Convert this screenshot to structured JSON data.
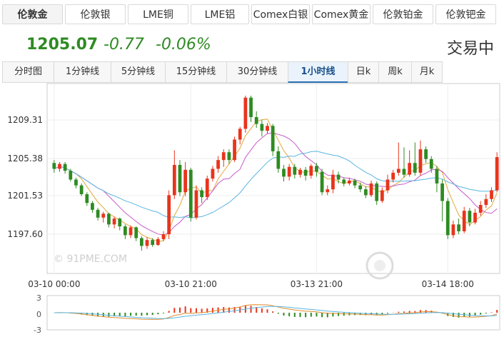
{
  "top_tabs": [
    {
      "label": "伦敦金",
      "active": true
    },
    {
      "label": "伦敦银",
      "active": false
    },
    {
      "label": "LME铜",
      "active": false
    },
    {
      "label": "LME铝",
      "active": false
    },
    {
      "label": "Comex白银",
      "active": false
    },
    {
      "label": "Comex黄金",
      "active": false
    },
    {
      "label": "伦敦铂金",
      "active": false
    },
    {
      "label": "伦敦钯金",
      "active": false
    }
  ],
  "quote": {
    "price": "1205.07",
    "change": "-0.77",
    "change_pct": "-0.06%",
    "status": "交易中",
    "color": "#2e8b22"
  },
  "range_tabs": [
    {
      "label": "分时图",
      "active": false
    },
    {
      "label": "1分钟线",
      "active": false
    },
    {
      "label": "5分钟线",
      "active": false
    },
    {
      "label": "15分钟线",
      "active": false
    },
    {
      "label": "30分钟线",
      "active": false
    },
    {
      "label": "1小时线",
      "active": true
    },
    {
      "label": "日k",
      "active": false
    },
    {
      "label": "周k",
      "active": false
    },
    {
      "label": "月k",
      "active": false
    }
  ],
  "watermark_text": "© 91PME.COM",
  "chart_data": {
    "type": "candlestick",
    "y_ticks": [
      "1209.31",
      "1205.38",
      "1201.53",
      "1197.60"
    ],
    "y_tick_values": [
      1209.31,
      1205.38,
      1201.53,
      1197.6
    ],
    "x_ticks": [
      "03-10 00:00",
      "03-10 21:00",
      "03-13 21:00",
      "03-14 18:00"
    ],
    "x_tick_index": [
      0,
      25,
      48,
      72
    ],
    "up_color": "#e8341c",
    "down_color": "#2e8b22",
    "ma_colors": [
      "#e3a83c",
      "#c85ac8",
      "#5ab5e0"
    ],
    "candles": [
      [
        1204.9,
        1204.3,
        1205.2,
        1203.9
      ],
      [
        1204.3,
        1204.8,
        1205.0,
        1204.0
      ],
      [
        1204.8,
        1204.1,
        1205.0,
        1203.8
      ],
      [
        1204.1,
        1203.2,
        1204.3,
        1203.0
      ],
      [
        1203.2,
        1202.6,
        1203.4,
        1202.3
      ],
      [
        1202.6,
        1201.7,
        1202.8,
        1201.5
      ],
      [
        1201.7,
        1200.8,
        1201.9,
        1200.5
      ],
      [
        1200.8,
        1200.1,
        1201.0,
        1199.8
      ],
      [
        1200.1,
        1199.3,
        1200.3,
        1199.0
      ],
      [
        1199.3,
        1199.7,
        1199.9,
        1198.8
      ],
      [
        1199.7,
        1198.6,
        1199.8,
        1198.3
      ],
      [
        1198.6,
        1199.2,
        1199.4,
        1198.2
      ],
      [
        1199.2,
        1198.4,
        1199.3,
        1198.0
      ],
      [
        1198.4,
        1197.5,
        1198.6,
        1197.1
      ],
      [
        1197.5,
        1198.3,
        1198.5,
        1197.2
      ],
      [
        1198.3,
        1197.2,
        1198.4,
        1196.9
      ],
      [
        1197.2,
        1196.4,
        1197.4,
        1195.9
      ],
      [
        1196.4,
        1197.0,
        1197.3,
        1196.1
      ],
      [
        1197.0,
        1196.5,
        1197.2,
        1196.3
      ],
      [
        1196.5,
        1197.1,
        1197.3,
        1196.4
      ],
      [
        1197.1,
        1197.6,
        1197.9,
        1196.9
      ],
      [
        1197.6,
        1201.6,
        1202.1,
        1197.1
      ],
      [
        1201.6,
        1204.7,
        1206.2,
        1201.2
      ],
      [
        1204.7,
        1201.9,
        1205.2,
        1201.5
      ],
      [
        1201.9,
        1204.2,
        1205.0,
        1201.5
      ],
      [
        1204.2,
        1199.3,
        1204.4,
        1198.9
      ],
      [
        1199.3,
        1202.1,
        1202.6,
        1199.1
      ],
      [
        1202.1,
        1201.4,
        1202.4,
        1200.8
      ],
      [
        1201.4,
        1203.3,
        1203.6,
        1201.1
      ],
      [
        1203.3,
        1204.3,
        1204.6,
        1203.0
      ],
      [
        1204.3,
        1205.2,
        1205.6,
        1203.9
      ],
      [
        1205.2,
        1206.0,
        1206.3,
        1204.5
      ],
      [
        1206.0,
        1205.2,
        1206.3,
        1204.8
      ],
      [
        1205.2,
        1207.3,
        1207.6,
        1205.0
      ],
      [
        1207.3,
        1208.4,
        1208.6,
        1206.8
      ],
      [
        1208.4,
        1211.6,
        1211.8,
        1208.0
      ],
      [
        1211.6,
        1209.6,
        1211.8,
        1209.1
      ],
      [
        1209.6,
        1208.9,
        1210.2,
        1208.5
      ],
      [
        1208.9,
        1208.2,
        1209.3,
        1207.6
      ],
      [
        1208.2,
        1208.7,
        1209.0,
        1207.9
      ],
      [
        1208.7,
        1206.1,
        1208.9,
        1205.6
      ],
      [
        1206.1,
        1204.3,
        1206.6,
        1203.9
      ],
      [
        1204.3,
        1203.5,
        1204.7,
        1203.0
      ],
      [
        1203.5,
        1204.5,
        1204.8,
        1203.1
      ],
      [
        1204.5,
        1203.7,
        1204.8,
        1203.3
      ],
      [
        1203.7,
        1204.2,
        1204.4,
        1203.4
      ],
      [
        1204.2,
        1203.6,
        1204.5,
        1203.1
      ],
      [
        1203.6,
        1204.6,
        1204.8,
        1203.3
      ],
      [
        1204.6,
        1204.0,
        1204.9,
        1203.5
      ],
      [
        1204.0,
        1201.9,
        1204.3,
        1201.6
      ],
      [
        1201.9,
        1202.2,
        1202.6,
        1201.6
      ],
      [
        1202.2,
        1203.7,
        1204.2,
        1201.8
      ],
      [
        1203.7,
        1203.2,
        1204.0,
        1202.8
      ],
      [
        1203.2,
        1202.8,
        1203.4,
        1202.5
      ],
      [
        1202.8,
        1203.1,
        1203.4,
        1202.6
      ],
      [
        1203.1,
        1202.6,
        1203.3,
        1202.3
      ],
      [
        1202.6,
        1202.2,
        1202.9,
        1201.9
      ],
      [
        1202.2,
        1201.6,
        1202.5,
        1201.3
      ],
      [
        1201.6,
        1202.8,
        1203.1,
        1201.4
      ],
      [
        1202.8,
        1201.0,
        1203.0,
        1200.6
      ],
      [
        1201.0,
        1202.1,
        1202.4,
        1200.8
      ],
      [
        1202.1,
        1203.2,
        1203.7,
        1201.8
      ],
      [
        1203.2,
        1203.9,
        1204.2,
        1202.9
      ],
      [
        1203.9,
        1204.3,
        1207.0,
        1203.6
      ],
      [
        1204.3,
        1203.7,
        1206.5,
        1203.4
      ],
      [
        1203.7,
        1204.9,
        1206.2,
        1203.5
      ],
      [
        1204.9,
        1203.9,
        1207.0,
        1203.6
      ],
      [
        1203.9,
        1206.3,
        1207.2,
        1203.6
      ],
      [
        1206.3,
        1205.3,
        1206.6,
        1204.9
      ],
      [
        1205.3,
        1204.3,
        1205.6,
        1203.9
      ],
      [
        1204.3,
        1202.8,
        1204.6,
        1201.9
      ],
      [
        1202.8,
        1201.0,
        1203.2,
        1198.9
      ],
      [
        1201.0,
        1197.5,
        1201.3,
        1197.1
      ],
      [
        1197.5,
        1198.6,
        1199.0,
        1197.2
      ],
      [
        1198.6,
        1197.9,
        1199.2,
        1197.6
      ],
      [
        1197.9,
        1200.0,
        1200.4,
        1197.7
      ],
      [
        1200.0,
        1198.8,
        1200.3,
        1198.4
      ],
      [
        1198.8,
        1199.8,
        1200.2,
        1198.6
      ],
      [
        1199.8,
        1200.6,
        1201.0,
        1199.5
      ],
      [
        1200.6,
        1201.2,
        1201.7,
        1200.3
      ],
      [
        1201.2,
        1202.1,
        1202.4,
        1200.9
      ],
      [
        1202.1,
        1205.5,
        1206.0,
        1201.9
      ]
    ]
  },
  "sub_chart": {
    "y_ticks": [
      "3",
      "0",
      "-3"
    ],
    "colors": {
      "dif": "#e08a2a",
      "dea": "#5ab5e0",
      "up": "#e8341c",
      "down": "#2e8b22"
    }
  }
}
